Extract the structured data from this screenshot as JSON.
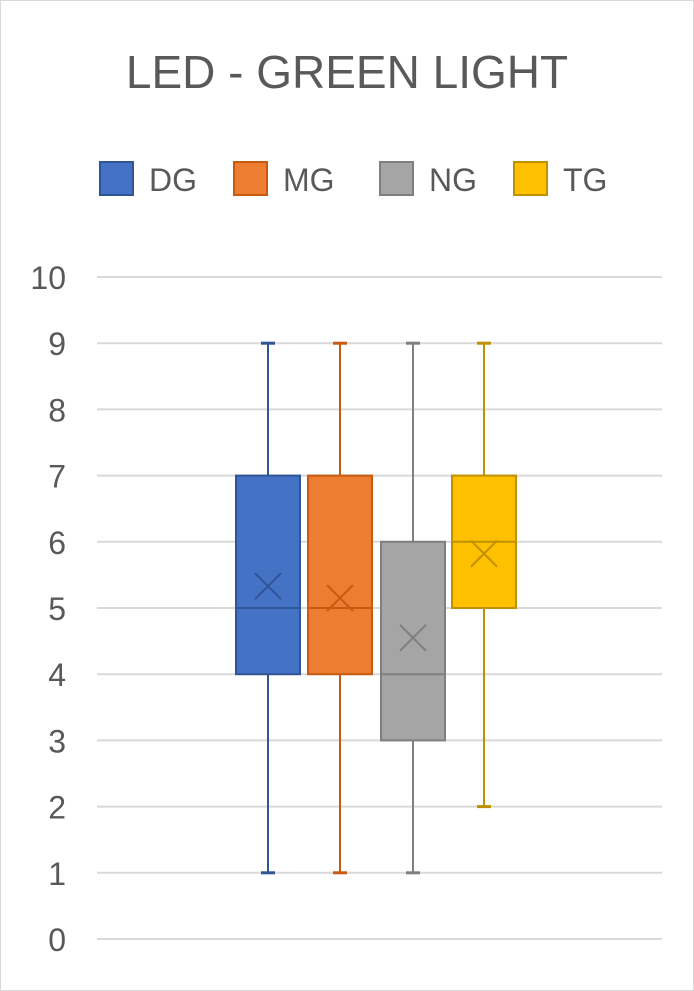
{
  "chart_data": {
    "type": "box",
    "title": "LED - GREEN LIGHT",
    "xlabel": "",
    "ylabel": "",
    "ylim": [
      0,
      10
    ],
    "yticks": [
      0,
      1,
      2,
      3,
      4,
      5,
      6,
      7,
      8,
      9,
      10
    ],
    "grid": true,
    "legend_position": "top",
    "series": [
      {
        "name": "DG",
        "color": "#4472c4",
        "edge": "#2f5597",
        "min": 1,
        "q1": 4,
        "median": 5,
        "q3": 7,
        "max": 9,
        "mean": 5.33
      },
      {
        "name": "MG",
        "color": "#ed7d31",
        "edge": "#c55a11",
        "min": 1,
        "q1": 4,
        "median": 5,
        "q3": 7,
        "max": 9,
        "mean": 5.15
      },
      {
        "name": "NG",
        "color": "#a5a5a5",
        "edge": "#7f7f7f",
        "min": 1,
        "q1": 3,
        "median": 4,
        "q3": 6,
        "max": 9,
        "mean": 4.55
      },
      {
        "name": "TG",
        "color": "#ffc000",
        "edge": "#bf9000",
        "min": 2,
        "q1": 5,
        "median": 6,
        "q3": 7,
        "max": 9,
        "mean": 5.82
      }
    ]
  }
}
